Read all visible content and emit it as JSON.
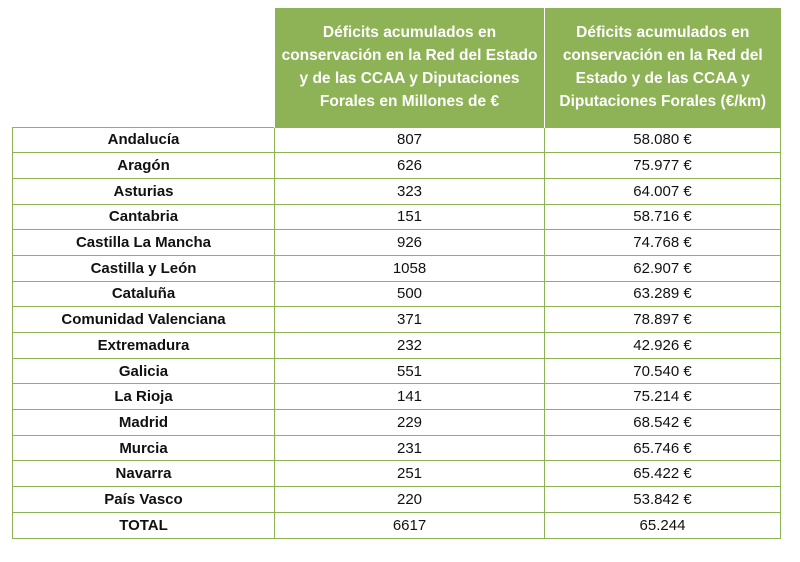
{
  "table": {
    "headers": [
      "",
      "Déficits acumulados en conservación en la Red del Estado y de las CCAA y Diputaciones Forales en Millones de €",
      "Déficits acumulados en conservación en la Red del Estado y de las CCAA y Diputaciones Forales (€/km)"
    ],
    "rows": [
      {
        "region": "Andalucía",
        "millones": "807",
        "eur_km": "58.080 €"
      },
      {
        "region": "Aragón",
        "millones": "626",
        "eur_km": "75.977 €"
      },
      {
        "region": "Asturias",
        "millones": "323",
        "eur_km": "64.007 €"
      },
      {
        "region": "Cantabria",
        "millones": "151",
        "eur_km": "58.716 €"
      },
      {
        "region": "Castilla La Mancha",
        "millones": "926",
        "eur_km": "74.768 €"
      },
      {
        "region": "Castilla y León",
        "millones": "1058",
        "eur_km": "62.907 €"
      },
      {
        "region": "Cataluña",
        "millones": "500",
        "eur_km": "63.289 €"
      },
      {
        "region": "Comunidad Valenciana",
        "millones": "371",
        "eur_km": "78.897 €"
      },
      {
        "region": "Extremadura",
        "millones": "232",
        "eur_km": "42.926 €"
      },
      {
        "region": "Galicia",
        "millones": "551",
        "eur_km": "70.540 €"
      },
      {
        "region": "La Rioja",
        "millones": "141",
        "eur_km": "75.214 €"
      },
      {
        "region": "Madrid",
        "millones": "229",
        "eur_km": "68.542 €"
      },
      {
        "region": "Murcia",
        "millones": "231",
        "eur_km": "65.746 €"
      },
      {
        "region": "Navarra",
        "millones": "251",
        "eur_km": "65.422 €"
      },
      {
        "region": "País Vasco",
        "millones": "220",
        "eur_km": "53.842 €"
      },
      {
        "region": "TOTAL",
        "millones": "6617",
        "eur_km": "65.244"
      }
    ]
  },
  "colors": {
    "header_bg": "#8db356",
    "header_text": "#ffffff",
    "border": "#8db356"
  }
}
